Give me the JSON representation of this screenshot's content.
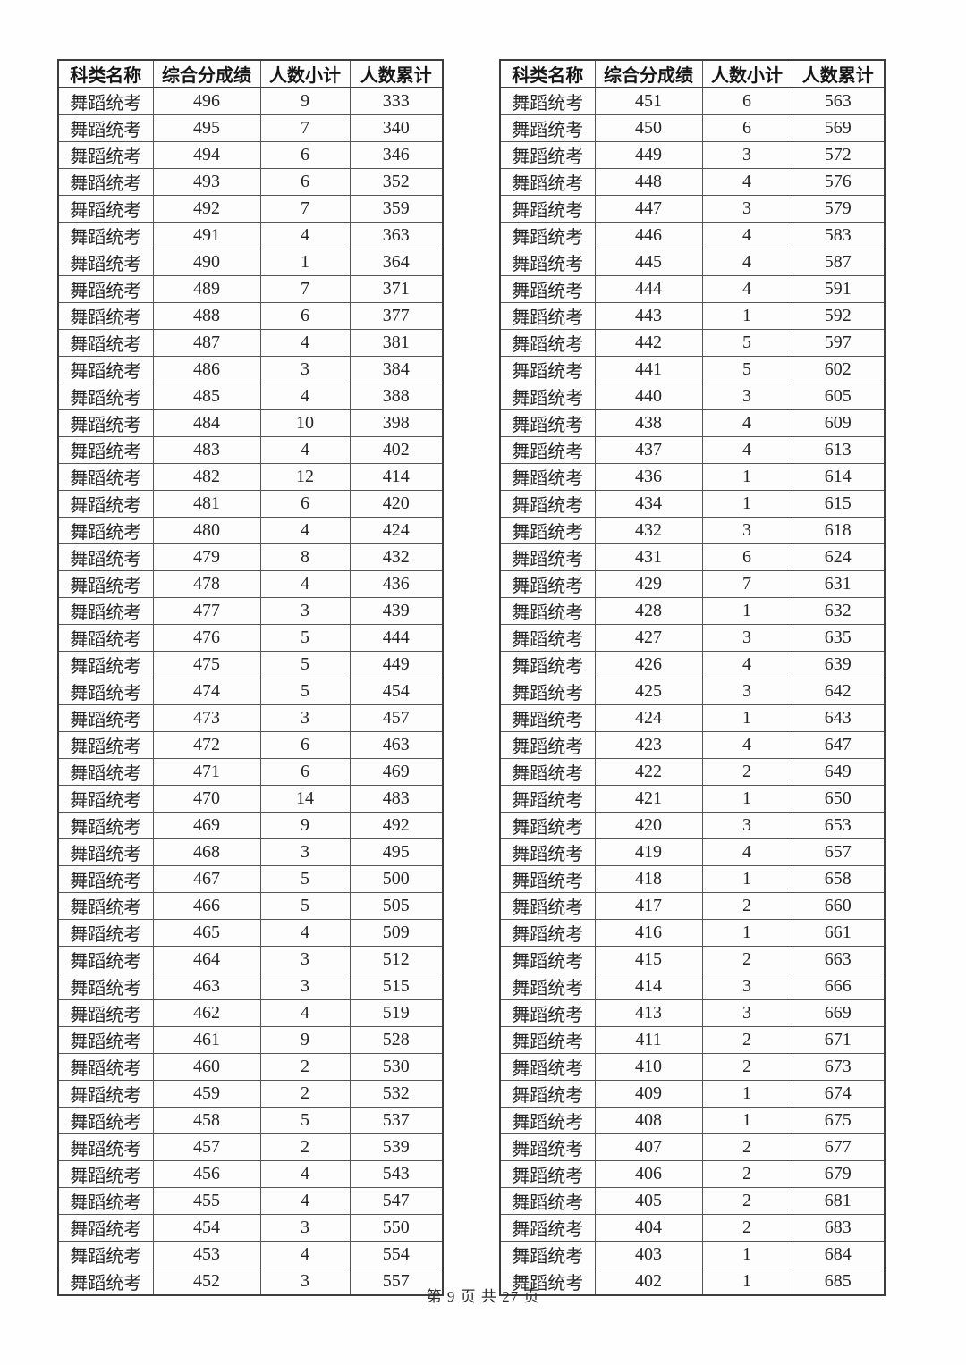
{
  "footer": {
    "text": "第 9 页 共 27 页"
  },
  "tables": [
    {
      "headers": [
        "科类名称",
        "综合分成绩",
        "人数小计",
        "人数累计"
      ],
      "rows": [
        [
          "舞蹈统考",
          "496",
          "9",
          "333"
        ],
        [
          "舞蹈统考",
          "495",
          "7",
          "340"
        ],
        [
          "舞蹈统考",
          "494",
          "6",
          "346"
        ],
        [
          "舞蹈统考",
          "493",
          "6",
          "352"
        ],
        [
          "舞蹈统考",
          "492",
          "7",
          "359"
        ],
        [
          "舞蹈统考",
          "491",
          "4",
          "363"
        ],
        [
          "舞蹈统考",
          "490",
          "1",
          "364"
        ],
        [
          "舞蹈统考",
          "489",
          "7",
          "371"
        ],
        [
          "舞蹈统考",
          "488",
          "6",
          "377"
        ],
        [
          "舞蹈统考",
          "487",
          "4",
          "381"
        ],
        [
          "舞蹈统考",
          "486",
          "3",
          "384"
        ],
        [
          "舞蹈统考",
          "485",
          "4",
          "388"
        ],
        [
          "舞蹈统考",
          "484",
          "10",
          "398"
        ],
        [
          "舞蹈统考",
          "483",
          "4",
          "402"
        ],
        [
          "舞蹈统考",
          "482",
          "12",
          "414"
        ],
        [
          "舞蹈统考",
          "481",
          "6",
          "420"
        ],
        [
          "舞蹈统考",
          "480",
          "4",
          "424"
        ],
        [
          "舞蹈统考",
          "479",
          "8",
          "432"
        ],
        [
          "舞蹈统考",
          "478",
          "4",
          "436"
        ],
        [
          "舞蹈统考",
          "477",
          "3",
          "439"
        ],
        [
          "舞蹈统考",
          "476",
          "5",
          "444"
        ],
        [
          "舞蹈统考",
          "475",
          "5",
          "449"
        ],
        [
          "舞蹈统考",
          "474",
          "5",
          "454"
        ],
        [
          "舞蹈统考",
          "473",
          "3",
          "457"
        ],
        [
          "舞蹈统考",
          "472",
          "6",
          "463"
        ],
        [
          "舞蹈统考",
          "471",
          "6",
          "469"
        ],
        [
          "舞蹈统考",
          "470",
          "14",
          "483"
        ],
        [
          "舞蹈统考",
          "469",
          "9",
          "492"
        ],
        [
          "舞蹈统考",
          "468",
          "3",
          "495"
        ],
        [
          "舞蹈统考",
          "467",
          "5",
          "500"
        ],
        [
          "舞蹈统考",
          "466",
          "5",
          "505"
        ],
        [
          "舞蹈统考",
          "465",
          "4",
          "509"
        ],
        [
          "舞蹈统考",
          "464",
          "3",
          "512"
        ],
        [
          "舞蹈统考",
          "463",
          "3",
          "515"
        ],
        [
          "舞蹈统考",
          "462",
          "4",
          "519"
        ],
        [
          "舞蹈统考",
          "461",
          "9",
          "528"
        ],
        [
          "舞蹈统考",
          "460",
          "2",
          "530"
        ],
        [
          "舞蹈统考",
          "459",
          "2",
          "532"
        ],
        [
          "舞蹈统考",
          "458",
          "5",
          "537"
        ],
        [
          "舞蹈统考",
          "457",
          "2",
          "539"
        ],
        [
          "舞蹈统考",
          "456",
          "4",
          "543"
        ],
        [
          "舞蹈统考",
          "455",
          "4",
          "547"
        ],
        [
          "舞蹈统考",
          "454",
          "3",
          "550"
        ],
        [
          "舞蹈统考",
          "453",
          "4",
          "554"
        ],
        [
          "舞蹈统考",
          "452",
          "3",
          "557"
        ]
      ]
    },
    {
      "headers": [
        "科类名称",
        "综合分成绩",
        "人数小计",
        "人数累计"
      ],
      "rows": [
        [
          "舞蹈统考",
          "451",
          "6",
          "563"
        ],
        [
          "舞蹈统考",
          "450",
          "6",
          "569"
        ],
        [
          "舞蹈统考",
          "449",
          "3",
          "572"
        ],
        [
          "舞蹈统考",
          "448",
          "4",
          "576"
        ],
        [
          "舞蹈统考",
          "447",
          "3",
          "579"
        ],
        [
          "舞蹈统考",
          "446",
          "4",
          "583"
        ],
        [
          "舞蹈统考",
          "445",
          "4",
          "587"
        ],
        [
          "舞蹈统考",
          "444",
          "4",
          "591"
        ],
        [
          "舞蹈统考",
          "443",
          "1",
          "592"
        ],
        [
          "舞蹈统考",
          "442",
          "5",
          "597"
        ],
        [
          "舞蹈统考",
          "441",
          "5",
          "602"
        ],
        [
          "舞蹈统考",
          "440",
          "3",
          "605"
        ],
        [
          "舞蹈统考",
          "438",
          "4",
          "609"
        ],
        [
          "舞蹈统考",
          "437",
          "4",
          "613"
        ],
        [
          "舞蹈统考",
          "436",
          "1",
          "614"
        ],
        [
          "舞蹈统考",
          "434",
          "1",
          "615"
        ],
        [
          "舞蹈统考",
          "432",
          "3",
          "618"
        ],
        [
          "舞蹈统考",
          "431",
          "6",
          "624"
        ],
        [
          "舞蹈统考",
          "429",
          "7",
          "631"
        ],
        [
          "舞蹈统考",
          "428",
          "1",
          "632"
        ],
        [
          "舞蹈统考",
          "427",
          "3",
          "635"
        ],
        [
          "舞蹈统考",
          "426",
          "4",
          "639"
        ],
        [
          "舞蹈统考",
          "425",
          "3",
          "642"
        ],
        [
          "舞蹈统考",
          "424",
          "1",
          "643"
        ],
        [
          "舞蹈统考",
          "423",
          "4",
          "647"
        ],
        [
          "舞蹈统考",
          "422",
          "2",
          "649"
        ],
        [
          "舞蹈统考",
          "421",
          "1",
          "650"
        ],
        [
          "舞蹈统考",
          "420",
          "3",
          "653"
        ],
        [
          "舞蹈统考",
          "419",
          "4",
          "657"
        ],
        [
          "舞蹈统考",
          "418",
          "1",
          "658"
        ],
        [
          "舞蹈统考",
          "417",
          "2",
          "660"
        ],
        [
          "舞蹈统考",
          "416",
          "1",
          "661"
        ],
        [
          "舞蹈统考",
          "415",
          "2",
          "663"
        ],
        [
          "舞蹈统考",
          "414",
          "3",
          "666"
        ],
        [
          "舞蹈统考",
          "413",
          "3",
          "669"
        ],
        [
          "舞蹈统考",
          "411",
          "2",
          "671"
        ],
        [
          "舞蹈统考",
          "410",
          "2",
          "673"
        ],
        [
          "舞蹈统考",
          "409",
          "1",
          "674"
        ],
        [
          "舞蹈统考",
          "408",
          "1",
          "675"
        ],
        [
          "舞蹈统考",
          "407",
          "2",
          "677"
        ],
        [
          "舞蹈统考",
          "406",
          "2",
          "679"
        ],
        [
          "舞蹈统考",
          "405",
          "2",
          "681"
        ],
        [
          "舞蹈统考",
          "404",
          "2",
          "683"
        ],
        [
          "舞蹈统考",
          "403",
          "1",
          "684"
        ],
        [
          "舞蹈统考",
          "402",
          "1",
          "685"
        ]
      ]
    }
  ]
}
